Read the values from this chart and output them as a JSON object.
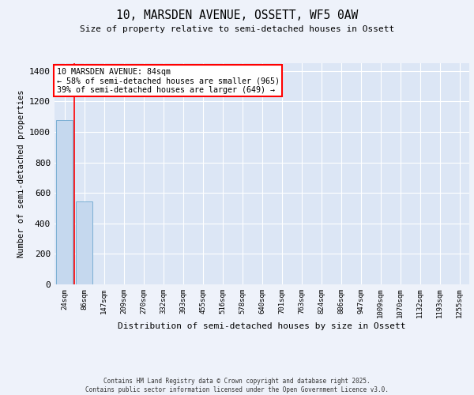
{
  "title": "10, MARSDEN AVENUE, OSSETT, WF5 0AW",
  "subtitle": "Size of property relative to semi-detached houses in Ossett",
  "xlabel": "Distribution of semi-detached houses by size in Ossett",
  "ylabel": "Number of semi-detached properties",
  "categories": [
    "24sqm",
    "86sqm",
    "147sqm",
    "209sqm",
    "270sqm",
    "332sqm",
    "393sqm",
    "455sqm",
    "516sqm",
    "578sqm",
    "640sqm",
    "701sqm",
    "763sqm",
    "824sqm",
    "886sqm",
    "947sqm",
    "1009sqm",
    "1070sqm",
    "1132sqm",
    "1193sqm",
    "1255sqm"
  ],
  "values": [
    1075,
    545,
    0,
    0,
    0,
    0,
    0,
    0,
    0,
    0,
    0,
    0,
    0,
    0,
    0,
    0,
    0,
    0,
    0,
    0,
    0
  ],
  "bar_color": "#c5d8ee",
  "bar_edgecolor": "#7bafd4",
  "annotation_title": "10 MARSDEN AVENUE: 84sqm",
  "annotation_line1": "← 58% of semi-detached houses are smaller (965)",
  "annotation_line2": "39% of semi-detached houses are larger (649) →",
  "annotation_color": "red",
  "ylim": [
    0,
    1450
  ],
  "yticks": [
    0,
    200,
    400,
    600,
    800,
    1000,
    1200,
    1400
  ],
  "footer_line1": "Contains HM Land Registry data © Crown copyright and database right 2025.",
  "footer_line2": "Contains public sector information licensed under the Open Government Licence v3.0.",
  "background_color": "#eef2fa",
  "plot_background": "#dce6f5",
  "grid_color": "white",
  "red_line_x": 0.5
}
